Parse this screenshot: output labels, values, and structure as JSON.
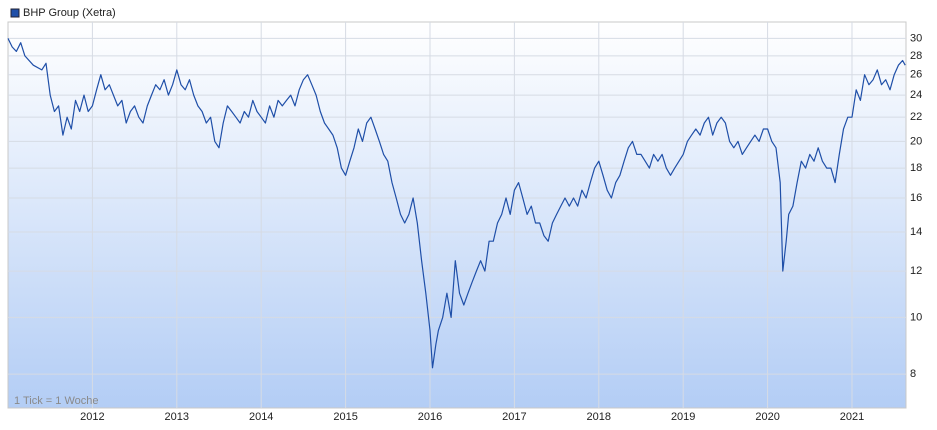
{
  "chart_data": {
    "type": "line",
    "annotation": "1 Tick = 1 Woche",
    "log_scale": true,
    "grid": true,
    "legend_position": "top-left",
    "xlim": [
      2011.0,
      2021.64
    ],
    "xticks": [
      2012,
      2013,
      2014,
      2015,
      2016,
      2017,
      2018,
      2019,
      2020,
      2021
    ],
    "ylim": [
      7,
      32
    ],
    "yticks": [
      8,
      10,
      12,
      14,
      16,
      18,
      20,
      22,
      24,
      26,
      28,
      30
    ],
    "x": [
      2011.0,
      2011.05,
      2011.1,
      2011.15,
      2011.2,
      2011.3,
      2011.4,
      2011.45,
      2011.5,
      2011.55,
      2011.6,
      2011.65,
      2011.7,
      2011.75,
      2011.8,
      2011.85,
      2011.9,
      2011.95,
      2012.0,
      2012.05,
      2012.1,
      2012.15,
      2012.2,
      2012.3,
      2012.35,
      2012.4,
      2012.45,
      2012.5,
      2012.55,
      2012.6,
      2012.65,
      2012.7,
      2012.75,
      2012.8,
      2012.85,
      2012.9,
      2012.95,
      2013.0,
      2013.05,
      2013.1,
      2013.15,
      2013.2,
      2013.25,
      2013.3,
      2013.35,
      2013.4,
      2013.45,
      2013.5,
      2013.55,
      2013.6,
      2013.65,
      2013.7,
      2013.75,
      2013.8,
      2013.85,
      2013.9,
      2013.95,
      2014.0,
      2014.05,
      2014.1,
      2014.15,
      2014.2,
      2014.25,
      2014.3,
      2014.35,
      2014.4,
      2014.45,
      2014.5,
      2014.55,
      2014.6,
      2014.65,
      2014.7,
      2014.75,
      2014.8,
      2014.85,
      2014.9,
      2014.95,
      2015.0,
      2015.05,
      2015.1,
      2015.15,
      2015.2,
      2015.25,
      2015.3,
      2015.35,
      2015.4,
      2015.45,
      2015.5,
      2015.55,
      2015.6,
      2015.65,
      2015.7,
      2015.75,
      2015.8,
      2015.85,
      2015.9,
      2015.95,
      2016.0,
      2016.03,
      2016.07,
      2016.1,
      2016.15,
      2016.2,
      2016.25,
      2016.3,
      2016.35,
      2016.4,
      2016.45,
      2016.5,
      2016.55,
      2016.6,
      2016.65,
      2016.7,
      2016.75,
      2016.8,
      2016.85,
      2016.9,
      2016.95,
      2017.0,
      2017.05,
      2017.1,
      2017.15,
      2017.2,
      2017.25,
      2017.3,
      2017.35,
      2017.4,
      2017.45,
      2017.5,
      2017.55,
      2017.6,
      2017.65,
      2017.7,
      2017.75,
      2017.8,
      2017.85,
      2017.9,
      2017.95,
      2018.0,
      2018.05,
      2018.1,
      2018.15,
      2018.2,
      2018.25,
      2018.3,
      2018.35,
      2018.4,
      2018.45,
      2018.5,
      2018.55,
      2018.6,
      2018.65,
      2018.7,
      2018.75,
      2018.8,
      2018.85,
      2018.9,
      2018.95,
      2019.0,
      2019.05,
      2019.1,
      2019.15,
      2019.2,
      2019.25,
      2019.3,
      2019.35,
      2019.4,
      2019.45,
      2019.5,
      2019.55,
      2019.6,
      2019.65,
      2019.7,
      2019.75,
      2019.8,
      2019.85,
      2019.9,
      2019.95,
      2020.0,
      2020.05,
      2020.1,
      2020.15,
      2020.18,
      2020.22,
      2020.25,
      2020.3,
      2020.35,
      2020.4,
      2020.45,
      2020.5,
      2020.55,
      2020.6,
      2020.65,
      2020.7,
      2020.75,
      2020.8,
      2020.85,
      2020.9,
      2020.95,
      2021.0,
      2021.05,
      2021.1,
      2021.15,
      2021.2,
      2021.25,
      2021.3,
      2021.35,
      2021.4,
      2021.45,
      2021.5,
      2021.55,
      2021.6,
      2021.63
    ],
    "series": [
      {
        "name": "BHP Group (Xetra)",
        "color": "#1f4fa8",
        "values": [
          30,
          29,
          28.5,
          29.5,
          28,
          27,
          26.5,
          27.2,
          24,
          22.5,
          23,
          20.5,
          22,
          21,
          23.5,
          22.5,
          24,
          22.5,
          23,
          24.5,
          26,
          24.5,
          25,
          23,
          23.5,
          21.5,
          22.5,
          23,
          22,
          21.5,
          23,
          24,
          25,
          24.5,
          25.5,
          24,
          25,
          26.5,
          25,
          24.5,
          25.5,
          24,
          23,
          22.5,
          21.5,
          22,
          20,
          19.5,
          21.5,
          23,
          22.5,
          22,
          21.5,
          22.5,
          22,
          23.5,
          22.5,
          22,
          21.5,
          23,
          22,
          23.5,
          23,
          23.5,
          24,
          23,
          24.5,
          25.5,
          26,
          25,
          24,
          22.5,
          21.5,
          21,
          20.5,
          19.5,
          18,
          17.5,
          18.5,
          19.5,
          21,
          20,
          21.5,
          22,
          21,
          20,
          19,
          18.5,
          17,
          16,
          15,
          14.5,
          15,
          16,
          14.5,
          12.5,
          11,
          9.5,
          8.2,
          9,
          9.5,
          10,
          11,
          10,
          12.5,
          11,
          10.5,
          11,
          11.5,
          12,
          12.5,
          12,
          13.5,
          13.5,
          14.5,
          15,
          16,
          15,
          16.5,
          17,
          16,
          15,
          15.5,
          14.5,
          14.5,
          13.8,
          13.5,
          14.5,
          15,
          15.5,
          16,
          15.5,
          16,
          15.5,
          16.5,
          16,
          17,
          18,
          18.5,
          17.5,
          16.5,
          16,
          17,
          17.5,
          18.5,
          19.5,
          20,
          19,
          19,
          18.5,
          18,
          19,
          18.5,
          19,
          18,
          17.5,
          18,
          18.5,
          19,
          20,
          20.5,
          21,
          20.5,
          21.5,
          22,
          20.5,
          21.5,
          22,
          21.5,
          20,
          19.5,
          20,
          19,
          19.5,
          20,
          20.5,
          20,
          21,
          21,
          20,
          19.5,
          17,
          12,
          13.5,
          15,
          15.5,
          17,
          18.5,
          18,
          19,
          18.5,
          19.5,
          18.5,
          18,
          18,
          17,
          19,
          21,
          22,
          22,
          24.5,
          23.5,
          26,
          25,
          25.5,
          26.5,
          25,
          25.5,
          24.5,
          26,
          27,
          27.5,
          27
        ]
      }
    ]
  }
}
